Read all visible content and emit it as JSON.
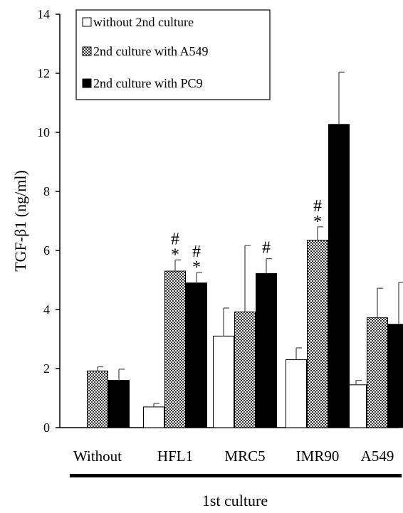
{
  "chart_data": {
    "type": "bar",
    "ylabel": "TGF-β1 (ng/ml)",
    "xlabel": "1st culture",
    "ylim": [
      0,
      14
    ],
    "yticks": [
      0,
      2,
      4,
      6,
      8,
      10,
      12,
      14
    ],
    "categories": [
      "Without",
      "HFL1",
      "MRC5",
      "IMR90",
      "A549"
    ],
    "legend_position": "top-left",
    "series": [
      {
        "name": "without 2nd culture",
        "fill": "white",
        "values": [
          null,
          0.7,
          3.1,
          2.3,
          1.45
        ],
        "errors": [
          null,
          0.12,
          0.95,
          0.4,
          0.15
        ]
      },
      {
        "name": "2nd culture with A549",
        "fill": "checkered",
        "values": [
          1.92,
          5.3,
          3.92,
          6.35,
          3.72
        ],
        "errors": [
          0.14,
          0.38,
          2.25,
          0.45,
          1.0
        ]
      },
      {
        "name": "2nd culture with PC9",
        "fill": "black",
        "values": [
          1.6,
          4.9,
          5.22,
          10.27,
          3.5
        ],
        "errors": [
          0.38,
          0.35,
          0.5,
          1.77,
          1.42
        ]
      }
    ],
    "annotations": [
      {
        "category": "HFL1",
        "series": 1,
        "marks": [
          "#",
          "*"
        ]
      },
      {
        "category": "HFL1",
        "series": 2,
        "marks": [
          "#",
          "*"
        ]
      },
      {
        "category": "MRC5",
        "series": 2,
        "marks": [
          "#"
        ]
      },
      {
        "category": "IMR90",
        "series": 1,
        "marks": [
          "#",
          "*"
        ]
      }
    ]
  }
}
